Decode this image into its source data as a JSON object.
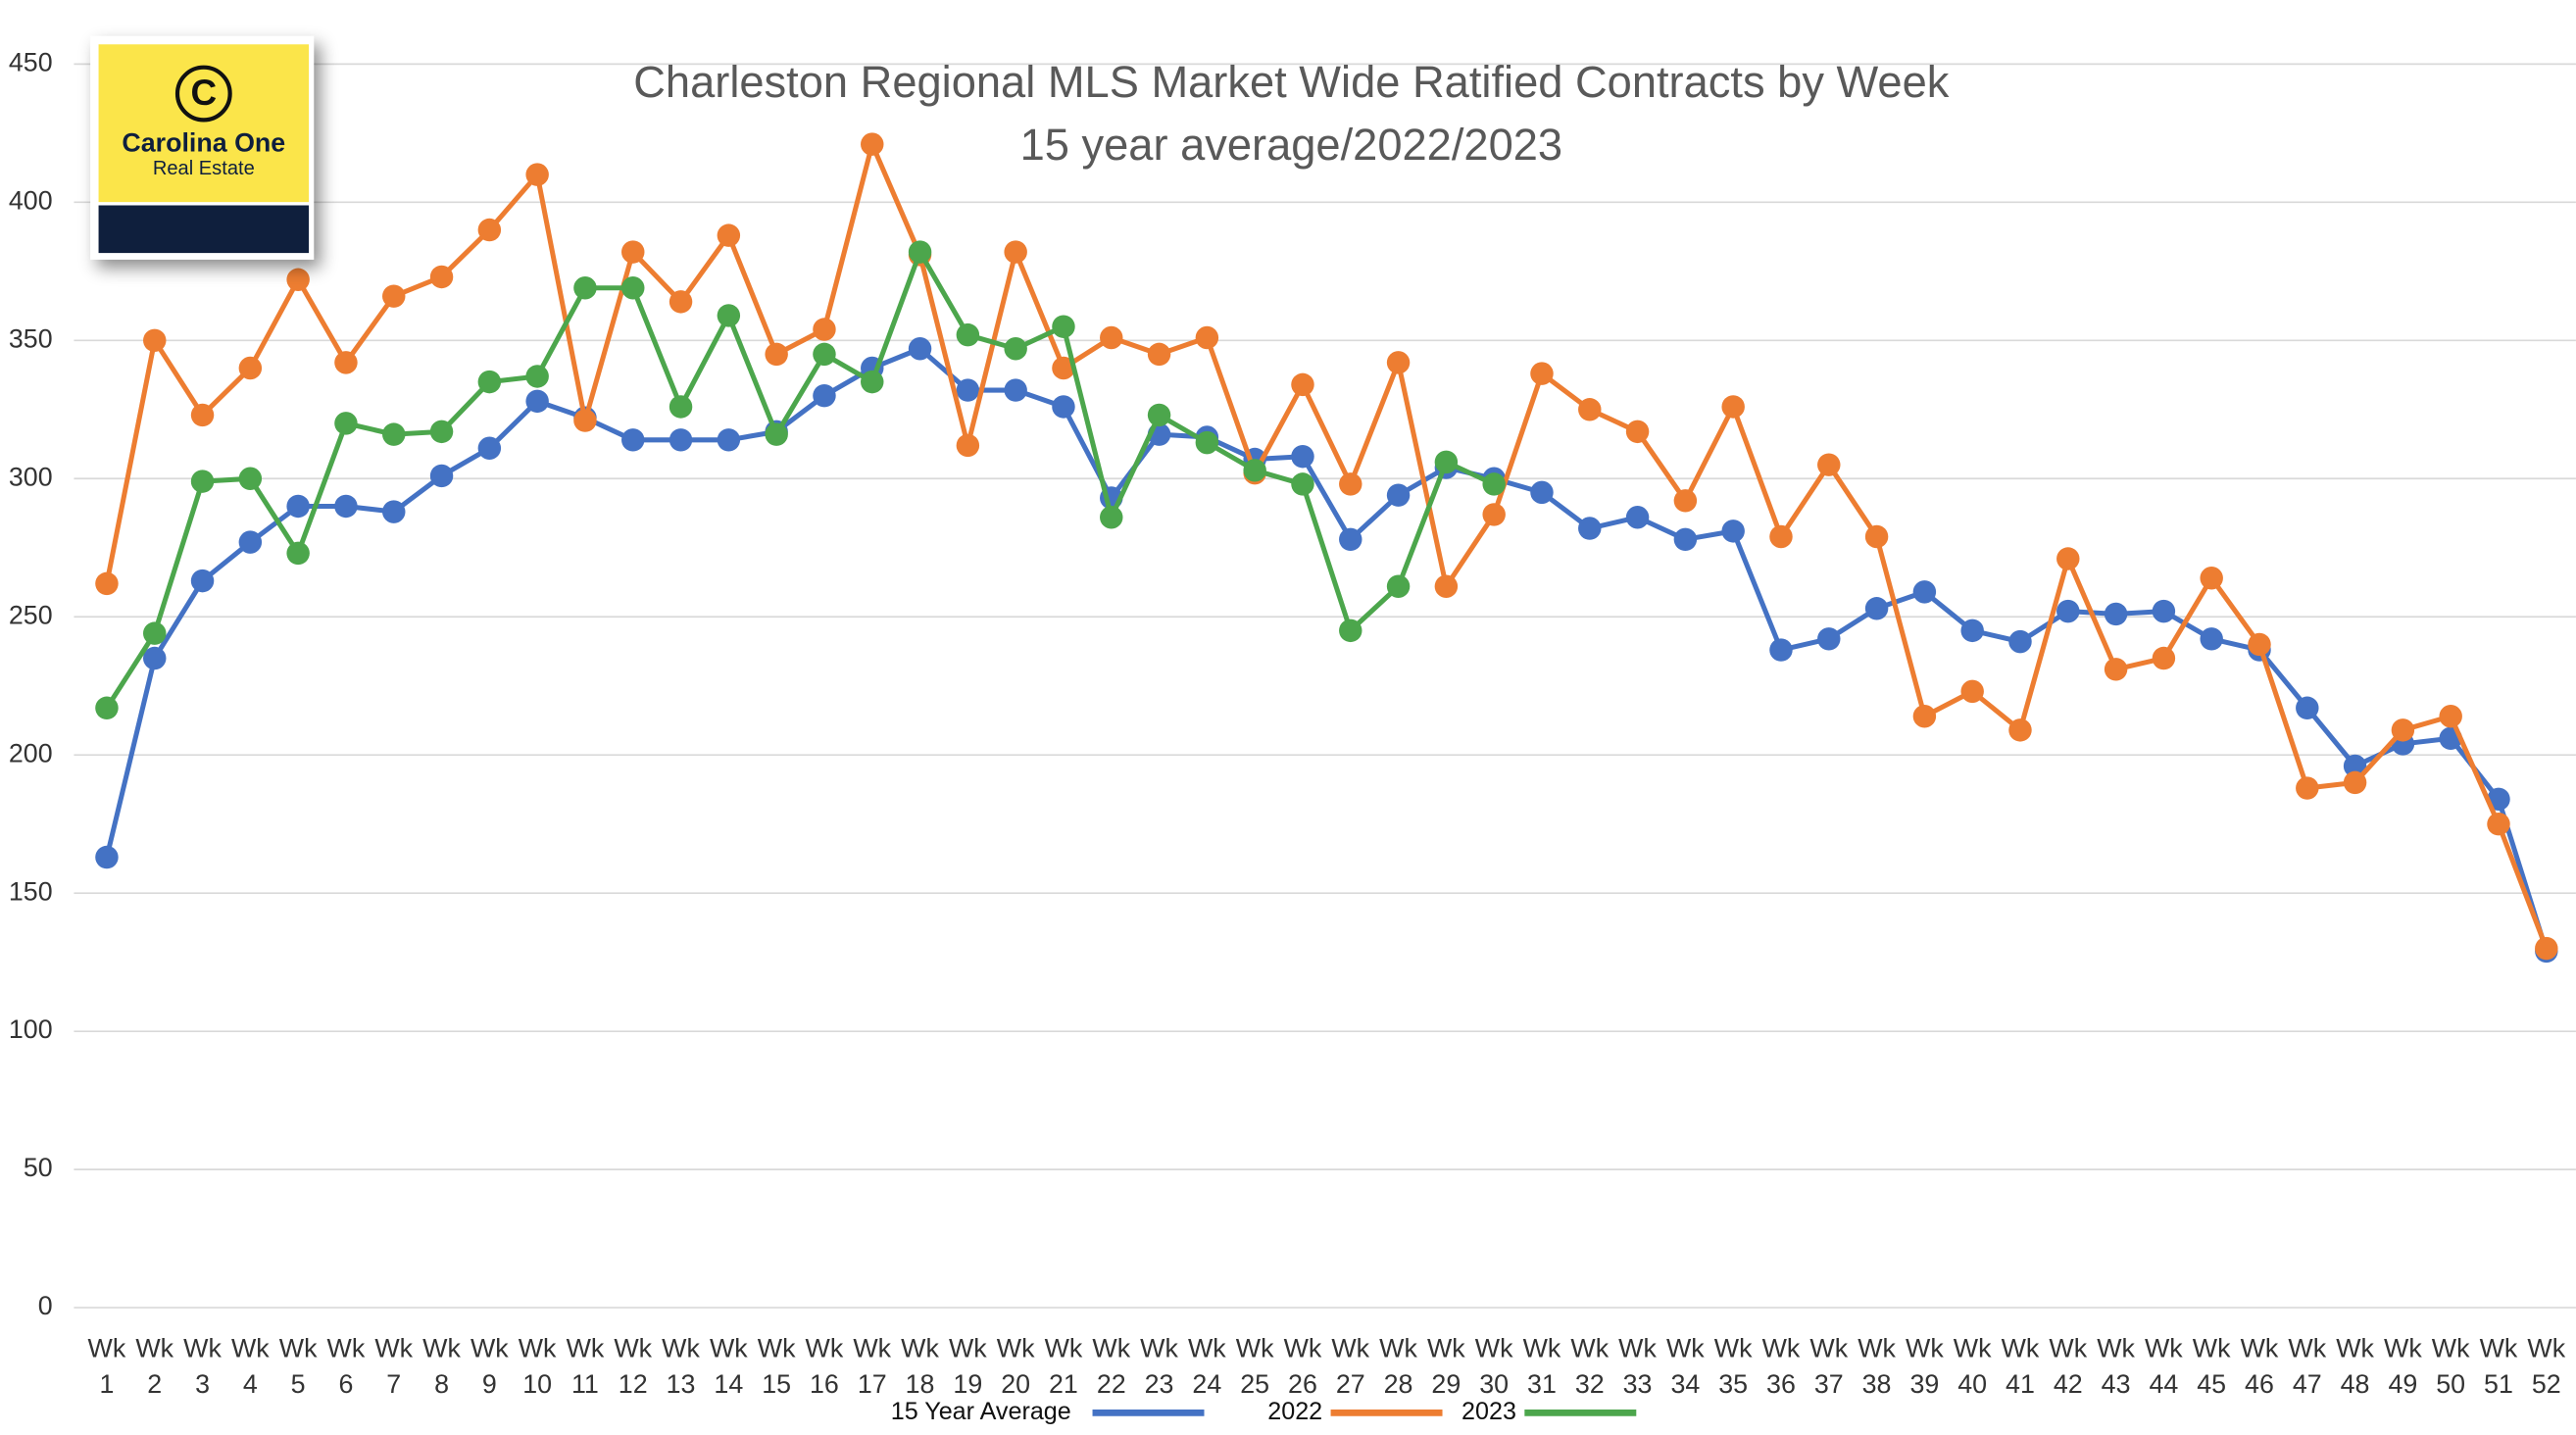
{
  "chart_data": {
    "type": "line",
    "title": "Charleston Regional MLS Market Wide Ratified Contracts by Week",
    "subtitle": "15 year average/2022/2023",
    "logo": {
      "symbol": "C",
      "name": "Carolina One",
      "tagline": "Real Estate"
    },
    "categories": [
      "Wk 1",
      "Wk 2",
      "Wk 3",
      "Wk 4",
      "Wk 5",
      "Wk 6",
      "Wk 7",
      "Wk 8",
      "Wk 9",
      "Wk 10",
      "Wk 11",
      "Wk 12",
      "Wk 13",
      "Wk 14",
      "Wk 15",
      "Wk 16",
      "Wk 17",
      "Wk 18",
      "Wk 19",
      "Wk 20",
      "Wk 21",
      "Wk 22",
      "Wk 23",
      "Wk 24",
      "Wk 25",
      "Wk 26",
      "Wk 27",
      "Wk 28",
      "Wk 29",
      "Wk 30",
      "Wk 31",
      "Wk 32",
      "Wk 33",
      "Wk 34",
      "Wk 35",
      "Wk 36",
      "Wk 37",
      "Wk 38",
      "Wk 39",
      "Wk 40",
      "Wk 41",
      "Wk 42",
      "Wk 43",
      "Wk 44",
      "Wk 45",
      "Wk 46",
      "Wk 47",
      "Wk 48",
      "Wk 49",
      "Wk 50",
      "Wk 51",
      "Wk 52"
    ],
    "series": [
      {
        "name": "15 Year Average",
        "color": "#4472c4",
        "values": [
          163,
          235,
          263,
          277,
          290,
          290,
          288,
          301,
          311,
          328,
          322,
          314,
          314,
          314,
          317,
          330,
          340,
          347,
          332,
          332,
          326,
          293,
          316,
          315,
          307,
          308,
          278,
          294,
          304,
          300,
          295,
          282,
          286,
          278,
          281,
          238,
          242,
          253,
          259,
          245,
          241,
          252,
          251,
          252,
          242,
          238,
          217,
          196,
          204,
          206,
          184,
          129
        ]
      },
      {
        "name": "2022",
        "color": "#ed7d31",
        "values": [
          262,
          350,
          323,
          340,
          372,
          342,
          366,
          373,
          390,
          410,
          321,
          382,
          364,
          388,
          345,
          354,
          421,
          381,
          312,
          382,
          340,
          351,
          345,
          351,
          302,
          334,
          298,
          342,
          261,
          287,
          338,
          325,
          317,
          292,
          326,
          279,
          305,
          279,
          214,
          223,
          209,
          271,
          231,
          235,
          264,
          240,
          188,
          190,
          209,
          214,
          175,
          130
        ]
      },
      {
        "name": "2023",
        "color": "#4ca64c",
        "values": [
          217,
          244,
          299,
          300,
          273,
          320,
          316,
          317,
          335,
          337,
          369,
          369,
          326,
          359,
          316,
          345,
          335,
          382,
          352,
          347,
          355,
          286,
          323,
          313,
          303,
          298,
          245,
          261,
          306,
          298,
          null,
          null,
          null,
          null,
          null,
          null,
          null,
          null,
          null,
          null,
          null,
          null,
          null,
          null,
          null,
          null,
          null,
          null,
          null,
          null,
          null,
          null
        ]
      }
    ],
    "ylim": [
      0,
      450
    ],
    "yticks": [
      0,
      50,
      100,
      150,
      200,
      250,
      300,
      350,
      400,
      450
    ],
    "grid": true
  }
}
